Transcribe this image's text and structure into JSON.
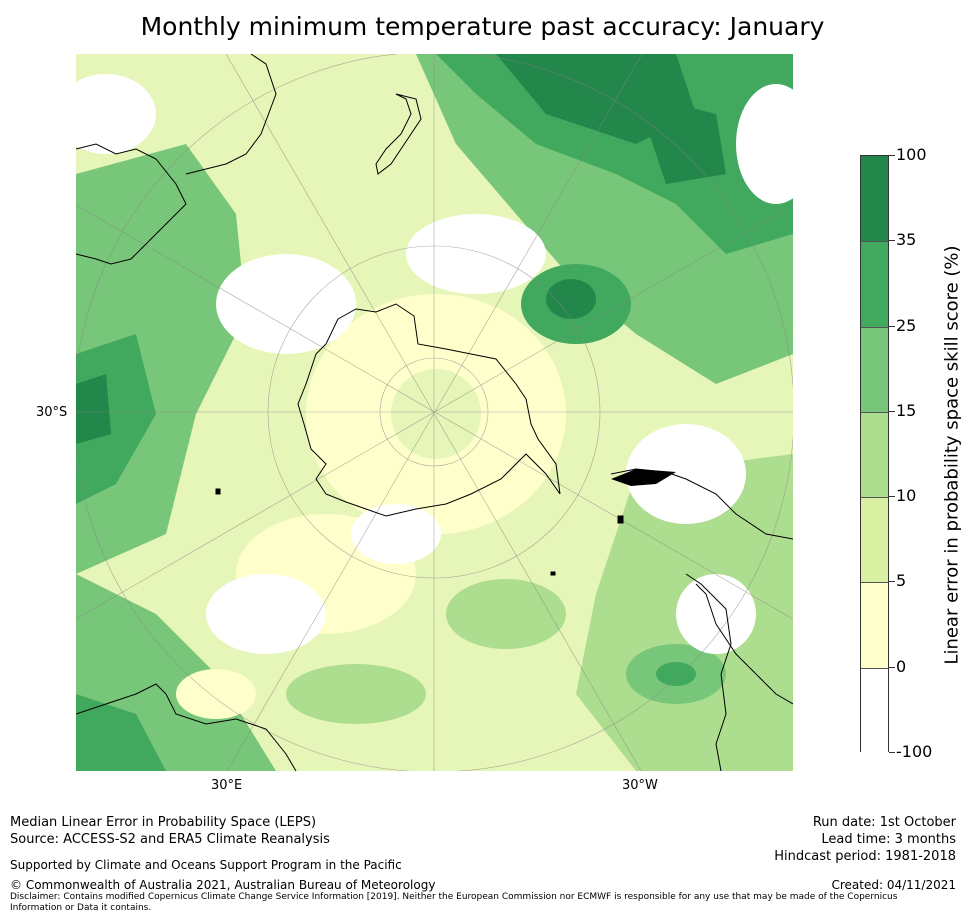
{
  "title": "Monthly minimum temperature past accuracy: January",
  "map": {
    "projection": "South Polar Stereographic",
    "region": "Southern Hemisphere / Antarctica centred",
    "labels": {
      "lat_left": "30°S",
      "lon_left": "30°E",
      "lon_right": "30°W"
    }
  },
  "colorbar": {
    "title": "Linear error in probability space skill score (%)",
    "ticks": [
      "100",
      "35",
      "25",
      "15",
      "10",
      "5",
      "0",
      "-100"
    ],
    "bins": [
      {
        "range": "35 to 100",
        "color": "#23864a"
      },
      {
        "range": "25 to 35",
        "color": "#40a95e"
      },
      {
        "range": "15 to 25",
        "color": "#78c679"
      },
      {
        "range": "10 to 15",
        "color": "#addd8e"
      },
      {
        "range": "5 to 10",
        "color": "#d9f0a3"
      },
      {
        "range": "0 to 5",
        "color": "#ffffcc"
      },
      {
        "range": "-100 to 0",
        "color": "#ffffff"
      }
    ]
  },
  "footer": {
    "left_line1": "Median Linear Error in Probability Space (LEPS)",
    "left_line2": "Source: ACCESS-S2 and ERA5 Climate Reanalysis",
    "support": "Supported by Climate and Oceans Support Program in the Pacific",
    "copyright": "© Commonwealth of Australia 2021, Australian Bureau of Meteorology",
    "disclaimer_line1": "Disclaimer: Contains modified Copernicus Climate Change Service Information [2019]. Neither the European Commission nor ECMWF is responsible for any use that may be made of the Copernicus",
    "disclaimer_line2": "Information or Data it contains.",
    "run_date": "Run date: 1st October",
    "lead_time": "Lead time: 3 months",
    "hindcast": "Hindcast period: 1981-2018",
    "created": "Created: 04/11/2021"
  }
}
